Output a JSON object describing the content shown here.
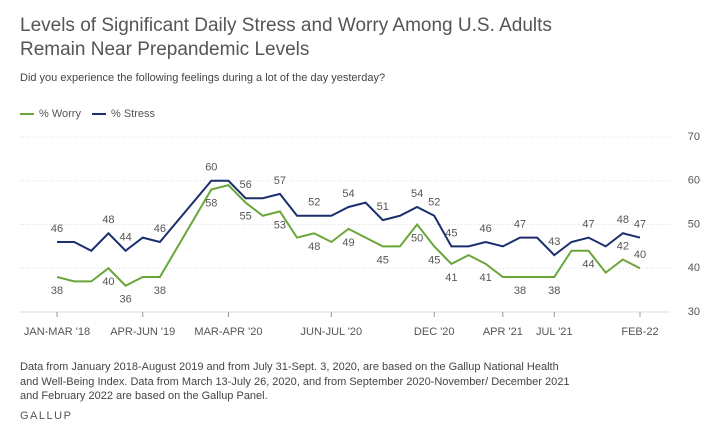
{
  "chart_data": {
    "type": "line",
    "title": "Levels of Significant Daily Stress and Worry Among U.S. Adults Remain Near Prepandemic Levels",
    "subtitle": "Did you experience the following feelings during a lot of the day yesterday?",
    "categories": [
      "JAN-MAR '18",
      null,
      null,
      null,
      null,
      "APR-JUN '19",
      null,
      null,
      "MAR-APR '20",
      null,
      null,
      null,
      null,
      null,
      "JUN-JUL '20",
      null,
      null,
      null,
      null,
      null,
      "DEC '20",
      null,
      null,
      null,
      "APR '21",
      null,
      null,
      "JUL '21",
      null,
      null,
      null,
      null,
      "FEB-22"
    ],
    "series": [
      {
        "name": "% Worry",
        "color": "#6aa539",
        "values": [
          38,
          37,
          37,
          40,
          36,
          38,
          38,
          58,
          59,
          55,
          52,
          53,
          47,
          48,
          46,
          49,
          47,
          45,
          45,
          50,
          45,
          41,
          43,
          41,
          38,
          38,
          38,
          38,
          44,
          44,
          39,
          42,
          40
        ]
      },
      {
        "name": "% Stress",
        "color": "#1b2f6e",
        "values": [
          46,
          46,
          44,
          48,
          44,
          47,
          46,
          60,
          60,
          56,
          56,
          57,
          52,
          52,
          52,
          54,
          55,
          51,
          52,
          54,
          52,
          45,
          45,
          46,
          45,
          47,
          47,
          43,
          46,
          47,
          45,
          48,
          47
        ]
      }
    ],
    "ylim": [
      30,
      70
    ],
    "yticks": [
      30,
      40,
      50,
      60,
      70
    ],
    "grid": true,
    "legend": "top-left",
    "note": "Data from January 2018-August 2019 and from July 31-Sept. 3, 2020, are based on the Gallup National Health and Well-Being Index. Data from March 13-July 26, 2020, and from September 2020-November/ December 2021 and February 2022 are based on the Gallup Panel.",
    "source": "GALLUP"
  }
}
